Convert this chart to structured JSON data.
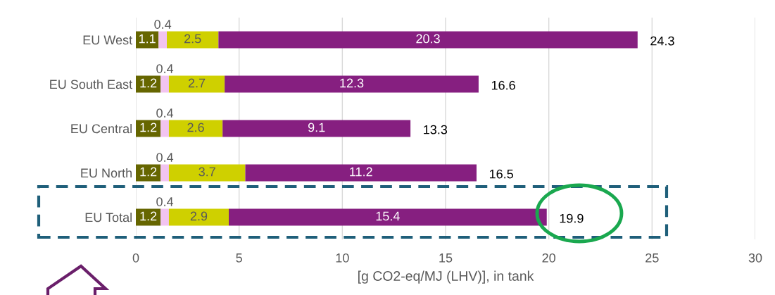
{
  "chart_data": {
    "type": "bar",
    "orientation": "horizontal",
    "stacked": true,
    "categories": [
      "EU West",
      "EU South East",
      "EU Central",
      "EU North",
      "EU Total"
    ],
    "series": [
      {
        "color": "#666600",
        "values": [
          1.1,
          1.2,
          1.2,
          1.2,
          1.2
        ],
        "value_labels": [
          "1.1",
          "1.2",
          "1.2",
          "1.2",
          "1.2"
        ]
      },
      {
        "color": "#f2c4f0",
        "values": [
          0.4,
          0.4,
          0.4,
          0.4,
          0.4
        ],
        "value_labels": [
          "0.4",
          "0.4",
          "0.4",
          "0.4",
          "0.4"
        ]
      },
      {
        "color": "#cfd000",
        "values": [
          2.5,
          2.7,
          2.6,
          3.7,
          2.9
        ],
        "value_labels": [
          "2.5",
          "2.7",
          "2.6",
          "3.7",
          "2.9"
        ]
      },
      {
        "color": "#861f80",
        "values": [
          20.3,
          12.3,
          9.1,
          11.2,
          15.4
        ],
        "value_labels": [
          "20.3",
          "12.3",
          "9.1",
          "11.2",
          "15.4"
        ]
      }
    ],
    "totals": [
      "24.3",
      "16.6",
      "13.3",
      "16.5",
      "19.9"
    ],
    "xlim": [
      0,
      30
    ],
    "xticks": [
      0,
      5,
      10,
      15,
      20,
      25,
      30
    ],
    "xlabel": "[g CO2-eq/MJ (LHV)], in tank",
    "grid": "x"
  }
}
